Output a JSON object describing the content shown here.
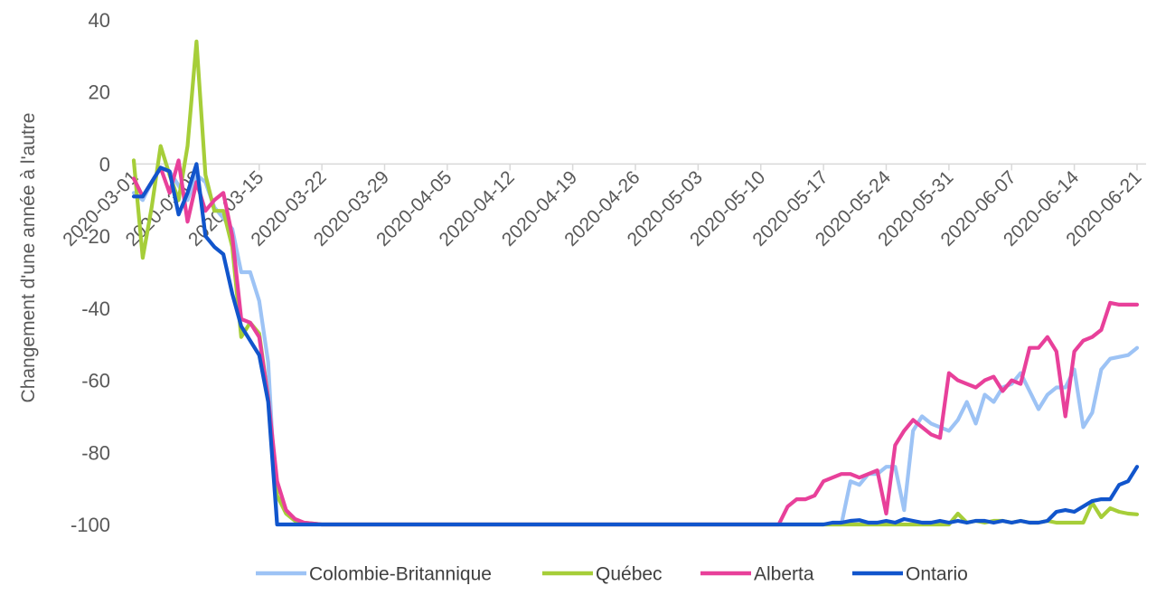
{
  "chart_data": {
    "type": "line",
    "title": "",
    "xlabel": "",
    "ylabel": "Changement d'une année à l'autre",
    "ylim": [
      -100,
      40
    ],
    "yticks": [
      40,
      20,
      0,
      -20,
      -40,
      -60,
      -80,
      -100
    ],
    "yticklabels": [
      "40",
      "20",
      "0",
      "-20",
      "-40",
      "-60",
      "-80",
      "-100"
    ],
    "xlim": [
      "2020-03-01",
      "2020-06-21"
    ],
    "xticks": [
      "2020-03-01",
      "2020-03-08",
      "2020-03-15",
      "2020-03-22",
      "2020-03-29",
      "2020-04-05",
      "2020-04-12",
      "2020-04-19",
      "2020-04-26",
      "2020-05-03",
      "2020-05-10",
      "2020-05-17",
      "2020-05-24",
      "2020-05-31",
      "2020-06-07",
      "2020-06-14",
      "2020-06-21"
    ],
    "xticklabels": [
      "2020-03-01",
      "2020-03-08",
      "2020-03-15",
      "2020-03-22",
      "2020-03-29",
      "2020-04-05",
      "2020-04-12",
      "2020-04-19",
      "2020-04-26",
      "2020-05-03",
      "2020-05-10",
      "2020-05-17",
      "2020-05-24",
      "2020-05-31",
      "2020-06-07",
      "2020-06-14",
      "2020-06-21"
    ],
    "grid": false,
    "legend_position": "bottom",
    "series": [
      {
        "name": "Colombie-Britannique",
        "color": "#9DC3F5",
        "points": [
          [
            "2020-03-01",
            -8
          ],
          [
            "2020-03-02",
            -10
          ],
          [
            "2020-03-03",
            -5
          ],
          [
            "2020-03-04",
            -1
          ],
          [
            "2020-03-05",
            -2
          ],
          [
            "2020-03-06",
            -6
          ],
          [
            "2020-03-07",
            -10
          ],
          [
            "2020-03-08",
            -3
          ],
          [
            "2020-03-09",
            -5
          ],
          [
            "2020-03-10",
            -12
          ],
          [
            "2020-03-11",
            -15
          ],
          [
            "2020-03-12",
            -18
          ],
          [
            "2020-03-13",
            -30
          ],
          [
            "2020-03-14",
            -30
          ],
          [
            "2020-03-15",
            -38
          ],
          [
            "2020-03-16",
            -55
          ],
          [
            "2020-03-17",
            -100
          ],
          [
            "2020-03-18",
            -100
          ],
          [
            "2020-03-22",
            -100
          ],
          [
            "2020-03-29",
            -100
          ],
          [
            "2020-04-05",
            -100
          ],
          [
            "2020-04-12",
            -100
          ],
          [
            "2020-04-19",
            -100
          ],
          [
            "2020-04-26",
            -100
          ],
          [
            "2020-05-03",
            -100
          ],
          [
            "2020-05-10",
            -100
          ],
          [
            "2020-05-17",
            -100
          ],
          [
            "2020-05-19",
            -100
          ],
          [
            "2020-05-20",
            -88
          ],
          [
            "2020-05-21",
            -89
          ],
          [
            "2020-05-22",
            -86
          ],
          [
            "2020-05-23",
            -86
          ],
          [
            "2020-05-24",
            -84
          ],
          [
            "2020-05-25",
            -84
          ],
          [
            "2020-05-26",
            -96
          ],
          [
            "2020-05-27",
            -74
          ],
          [
            "2020-05-28",
            -70
          ],
          [
            "2020-05-29",
            -72
          ],
          [
            "2020-05-30",
            -73
          ],
          [
            "2020-05-31",
            -74
          ],
          [
            "2020-06-01",
            -71
          ],
          [
            "2020-06-02",
            -66
          ],
          [
            "2020-06-03",
            -72
          ],
          [
            "2020-06-04",
            -64
          ],
          [
            "2020-06-05",
            -66
          ],
          [
            "2020-06-06",
            -62
          ],
          [
            "2020-06-07",
            -61
          ],
          [
            "2020-06-08",
            -58
          ],
          [
            "2020-06-09",
            -63
          ],
          [
            "2020-06-10",
            -68
          ],
          [
            "2020-06-11",
            -64
          ],
          [
            "2020-06-12",
            -62
          ],
          [
            "2020-06-13",
            -62
          ],
          [
            "2020-06-14",
            -57
          ],
          [
            "2020-06-15",
            -73
          ],
          [
            "2020-06-16",
            -69
          ],
          [
            "2020-06-17",
            -57
          ],
          [
            "2020-06-18",
            -54
          ],
          [
            "2020-06-19",
            -53.5
          ],
          [
            "2020-06-20",
            -53
          ],
          [
            "2020-06-21",
            -51
          ]
        ]
      },
      {
        "name": "Québec",
        "color": "#A6CE39",
        "points": [
          [
            "2020-03-01",
            1
          ],
          [
            "2020-03-02",
            -26
          ],
          [
            "2020-03-03",
            -12
          ],
          [
            "2020-03-04",
            5
          ],
          [
            "2020-03-05",
            -3
          ],
          [
            "2020-03-06",
            -10
          ],
          [
            "2020-03-07",
            5
          ],
          [
            "2020-03-08",
            34
          ],
          [
            "2020-03-09",
            -3
          ],
          [
            "2020-03-10",
            -13
          ],
          [
            "2020-03-11",
            -13
          ],
          [
            "2020-03-12",
            -23
          ],
          [
            "2020-03-13",
            -48
          ],
          [
            "2020-03-14",
            -44
          ],
          [
            "2020-03-15",
            -47
          ],
          [
            "2020-03-16",
            -65
          ],
          [
            "2020-03-17",
            -92
          ],
          [
            "2020-03-18",
            -97
          ],
          [
            "2020-03-19",
            -99
          ],
          [
            "2020-03-20",
            -99.5
          ],
          [
            "2020-03-22",
            -100
          ],
          [
            "2020-03-29",
            -100
          ],
          [
            "2020-04-05",
            -100
          ],
          [
            "2020-04-12",
            -100
          ],
          [
            "2020-04-19",
            -100
          ],
          [
            "2020-04-26",
            -100
          ],
          [
            "2020-05-03",
            -100
          ],
          [
            "2020-05-10",
            -100
          ],
          [
            "2020-05-17",
            -100
          ],
          [
            "2020-05-24",
            -100
          ],
          [
            "2020-05-31",
            -100
          ],
          [
            "2020-06-01",
            -97
          ],
          [
            "2020-06-02",
            -99.5
          ],
          [
            "2020-06-03",
            -99
          ],
          [
            "2020-06-04",
            -99.5
          ],
          [
            "2020-06-05",
            -99
          ],
          [
            "2020-06-06",
            -99
          ],
          [
            "2020-06-07",
            -99.5
          ],
          [
            "2020-06-08",
            -99
          ],
          [
            "2020-06-09",
            -99.5
          ],
          [
            "2020-06-10",
            -99.5
          ],
          [
            "2020-06-11",
            -99
          ],
          [
            "2020-06-12",
            -99.5
          ],
          [
            "2020-06-13",
            -99.5
          ],
          [
            "2020-06-14",
            -99.5
          ],
          [
            "2020-06-15",
            -99.5
          ],
          [
            "2020-06-16",
            -94
          ],
          [
            "2020-06-17",
            -98
          ],
          [
            "2020-06-18",
            -95.5
          ],
          [
            "2020-06-19",
            -96.5
          ],
          [
            "2020-06-20",
            -97
          ],
          [
            "2020-06-21",
            -97.2
          ]
        ]
      },
      {
        "name": "Alberta",
        "color": "#E8409A",
        "points": [
          [
            "2020-03-01",
            -4
          ],
          [
            "2020-03-02",
            -9
          ],
          [
            "2020-03-03",
            -5
          ],
          [
            "2020-03-04",
            -1
          ],
          [
            "2020-03-05",
            -8
          ],
          [
            "2020-03-06",
            1
          ],
          [
            "2020-03-07",
            -16
          ],
          [
            "2020-03-08",
            -5
          ],
          [
            "2020-03-09",
            -13
          ],
          [
            "2020-03-10",
            -10
          ],
          [
            "2020-03-11",
            -8
          ],
          [
            "2020-03-12",
            -20
          ],
          [
            "2020-03-13",
            -43
          ],
          [
            "2020-03-14",
            -44
          ],
          [
            "2020-03-15",
            -48
          ],
          [
            "2020-03-16",
            -65
          ],
          [
            "2020-03-17",
            -88
          ],
          [
            "2020-03-18",
            -96
          ],
          [
            "2020-03-19",
            -98.5
          ],
          [
            "2020-03-20",
            -99.5
          ],
          [
            "2020-03-22",
            -100
          ],
          [
            "2020-03-29",
            -100
          ],
          [
            "2020-04-05",
            -100
          ],
          [
            "2020-04-12",
            -100
          ],
          [
            "2020-04-19",
            -100
          ],
          [
            "2020-04-26",
            -100
          ],
          [
            "2020-05-03",
            -100
          ],
          [
            "2020-05-10",
            -100
          ],
          [
            "2020-05-12",
            -100
          ],
          [
            "2020-05-13",
            -95
          ],
          [
            "2020-05-14",
            -93
          ],
          [
            "2020-05-15",
            -93
          ],
          [
            "2020-05-16",
            -92
          ],
          [
            "2020-05-17",
            -88
          ],
          [
            "2020-05-18",
            -87
          ],
          [
            "2020-05-19",
            -86
          ],
          [
            "2020-05-20",
            -86
          ],
          [
            "2020-05-21",
            -87
          ],
          [
            "2020-05-22",
            -86
          ],
          [
            "2020-05-23",
            -85
          ],
          [
            "2020-05-24",
            -97
          ],
          [
            "2020-05-25",
            -78
          ],
          [
            "2020-05-26",
            -74
          ],
          [
            "2020-05-27",
            -71
          ],
          [
            "2020-05-28",
            -73
          ],
          [
            "2020-05-29",
            -75
          ],
          [
            "2020-05-30",
            -76
          ],
          [
            "2020-05-31",
            -58
          ],
          [
            "2020-06-01",
            -60
          ],
          [
            "2020-06-02",
            -61
          ],
          [
            "2020-06-03",
            -62
          ],
          [
            "2020-06-04",
            -60
          ],
          [
            "2020-06-05",
            -59
          ],
          [
            "2020-06-06",
            -63
          ],
          [
            "2020-06-07",
            -60
          ],
          [
            "2020-06-08",
            -61
          ],
          [
            "2020-06-09",
            -51
          ],
          [
            "2020-06-10",
            -51
          ],
          [
            "2020-06-11",
            -48
          ],
          [
            "2020-06-12",
            -52
          ],
          [
            "2020-06-13",
            -70
          ],
          [
            "2020-06-14",
            -52
          ],
          [
            "2020-06-15",
            -49
          ],
          [
            "2020-06-16",
            -48
          ],
          [
            "2020-06-17",
            -46
          ],
          [
            "2020-06-18",
            -38.5
          ],
          [
            "2020-06-19",
            -39
          ],
          [
            "2020-06-20",
            -39
          ],
          [
            "2020-06-21",
            -39
          ]
        ]
      },
      {
        "name": "Ontario",
        "color": "#1155CC",
        "points": [
          [
            "2020-03-01",
            -9
          ],
          [
            "2020-03-02",
            -9
          ],
          [
            "2020-03-03",
            -5
          ],
          [
            "2020-03-04",
            -1
          ],
          [
            "2020-03-05",
            -2
          ],
          [
            "2020-03-06",
            -14
          ],
          [
            "2020-03-07",
            -8
          ],
          [
            "2020-03-08",
            0
          ],
          [
            "2020-03-09",
            -20
          ],
          [
            "2020-03-10",
            -23
          ],
          [
            "2020-03-11",
            -25
          ],
          [
            "2020-03-12",
            -36
          ],
          [
            "2020-03-13",
            -45
          ],
          [
            "2020-03-14",
            -49
          ],
          [
            "2020-03-15",
            -53
          ],
          [
            "2020-03-16",
            -66
          ],
          [
            "2020-03-17",
            -100
          ],
          [
            "2020-03-18",
            -100
          ],
          [
            "2020-03-22",
            -100
          ],
          [
            "2020-03-29",
            -100
          ],
          [
            "2020-04-05",
            -100
          ],
          [
            "2020-04-12",
            -100
          ],
          [
            "2020-04-19",
            -100
          ],
          [
            "2020-04-26",
            -100
          ],
          [
            "2020-05-03",
            -100
          ],
          [
            "2020-05-10",
            -100
          ],
          [
            "2020-05-17",
            -100
          ],
          [
            "2020-05-18",
            -99.5
          ],
          [
            "2020-05-19",
            -99.5
          ],
          [
            "2020-05-20",
            -99
          ],
          [
            "2020-05-21",
            -98.8
          ],
          [
            "2020-05-22",
            -99.5
          ],
          [
            "2020-05-23",
            -99.5
          ],
          [
            "2020-05-24",
            -99
          ],
          [
            "2020-05-25",
            -99.5
          ],
          [
            "2020-05-26",
            -98.5
          ],
          [
            "2020-05-27",
            -99
          ],
          [
            "2020-05-28",
            -99.5
          ],
          [
            "2020-05-29",
            -99.5
          ],
          [
            "2020-05-30",
            -99
          ],
          [
            "2020-05-31",
            -99.5
          ],
          [
            "2020-06-01",
            -99
          ],
          [
            "2020-06-02",
            -99.5
          ],
          [
            "2020-06-03",
            -99
          ],
          [
            "2020-06-04",
            -99
          ],
          [
            "2020-06-05",
            -99.5
          ],
          [
            "2020-06-06",
            -99
          ],
          [
            "2020-06-07",
            -99.5
          ],
          [
            "2020-06-08",
            -99
          ],
          [
            "2020-06-09",
            -99.5
          ],
          [
            "2020-06-10",
            -99.5
          ],
          [
            "2020-06-11",
            -99
          ],
          [
            "2020-06-12",
            -96.5
          ],
          [
            "2020-06-13",
            -96
          ],
          [
            "2020-06-14",
            -96.5
          ],
          [
            "2020-06-15",
            -95
          ],
          [
            "2020-06-16",
            -93.5
          ],
          [
            "2020-06-17",
            -93
          ],
          [
            "2020-06-18",
            -93
          ],
          [
            "2020-06-19",
            -89
          ],
          [
            "2020-06-20",
            -88
          ],
          [
            "2020-06-21",
            -84
          ]
        ]
      }
    ]
  }
}
